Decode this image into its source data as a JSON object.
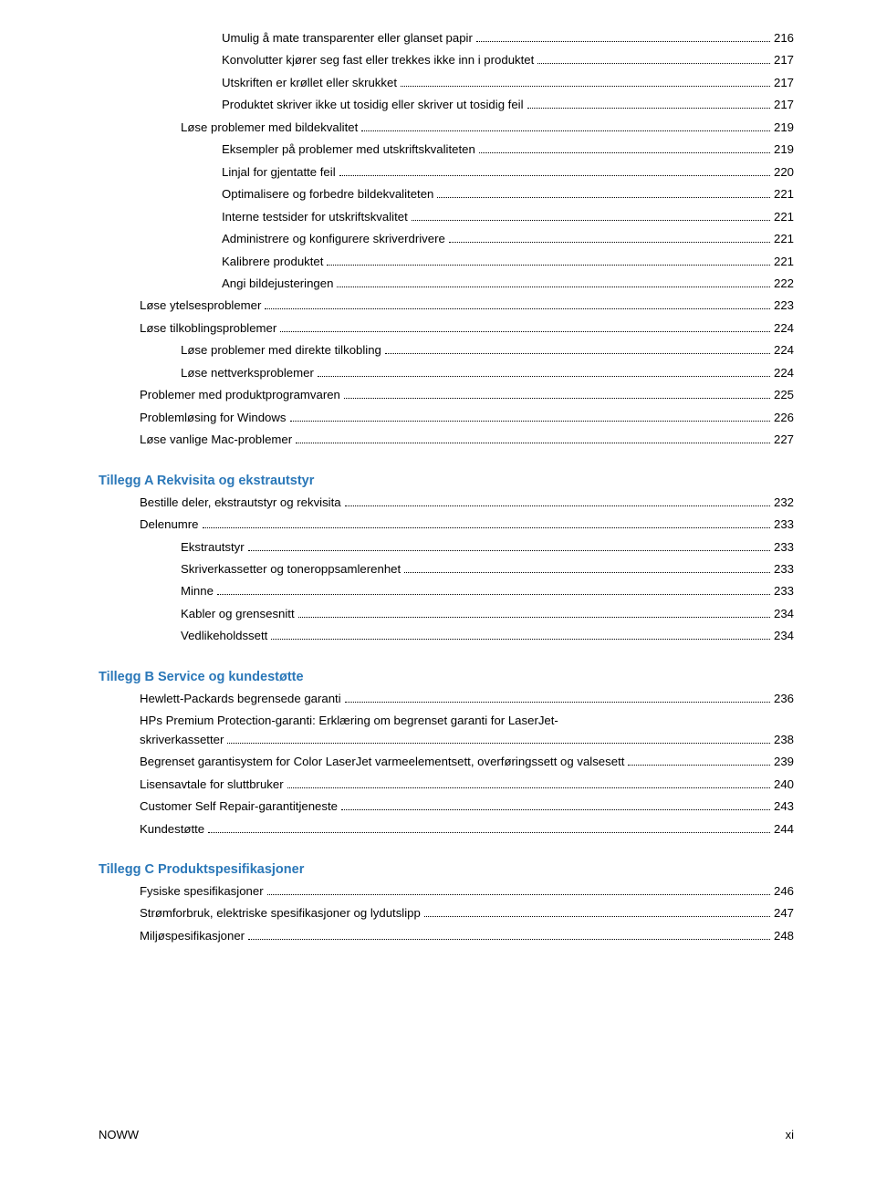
{
  "continued": [
    {
      "indent": 3,
      "label": "Umulig å mate transparenter eller glanset papir",
      "page": "216"
    },
    {
      "indent": 3,
      "label": "Konvolutter kjører seg fast eller trekkes ikke inn i produktet",
      "page": "217"
    },
    {
      "indent": 3,
      "label": "Utskriften er krøllet eller skrukket",
      "page": "217"
    },
    {
      "indent": 3,
      "label": "Produktet skriver ikke ut tosidig eller skriver ut tosidig feil",
      "page": "217"
    },
    {
      "indent": 2,
      "label": "Løse problemer med bildekvalitet",
      "page": "219"
    },
    {
      "indent": 3,
      "label": "Eksempler på problemer med utskriftskvaliteten",
      "page": "219"
    },
    {
      "indent": 3,
      "label": "Linjal for gjentatte feil",
      "page": "220"
    },
    {
      "indent": 3,
      "label": "Optimalisere og forbedre bildekvaliteten",
      "page": "221"
    },
    {
      "indent": 3,
      "label": "Interne testsider for utskriftskvalitet",
      "page": "221"
    },
    {
      "indent": 3,
      "label": "Administrere og konfigurere skriverdrivere ",
      "page": "221"
    },
    {
      "indent": 3,
      "label": "Kalibrere produktet",
      "page": "221"
    },
    {
      "indent": 3,
      "label": "Angi bildejusteringen",
      "page": "222"
    },
    {
      "indent": 1,
      "label": "Løse ytelsesproblemer",
      "page": "223"
    },
    {
      "indent": 1,
      "label": "Løse tilkoblingsproblemer ",
      "page": "224"
    },
    {
      "indent": 2,
      "label": "Løse problemer med direkte tilkobling",
      "page": "224"
    },
    {
      "indent": 2,
      "label": "Løse nettverksproblemer",
      "page": "224"
    },
    {
      "indent": 1,
      "label": "Problemer med produktprogramvaren",
      "page": "225"
    },
    {
      "indent": 1,
      "label": "Problemløsing for Windows ",
      "page": "226"
    },
    {
      "indent": 1,
      "label": "Løse vanlige Mac-problemer",
      "page": "227"
    }
  ],
  "sections": [
    {
      "prefix": "Tillegg A",
      "name": "Rekvisita og ekstrautstyr",
      "items": [
        {
          "indent": 1,
          "label": "Bestille deler, ekstrautstyr og rekvisita",
          "page": "232"
        },
        {
          "indent": 1,
          "label": "Delenumre",
          "page": "233"
        },
        {
          "indent": 2,
          "label": "Ekstrautstyr",
          "page": "233"
        },
        {
          "indent": 2,
          "label": "Skriverkassetter og toneroppsamlerenhet",
          "page": "233"
        },
        {
          "indent": 2,
          "label": "Minne",
          "page": "233"
        },
        {
          "indent": 2,
          "label": "Kabler og grensesnitt",
          "page": "234"
        },
        {
          "indent": 2,
          "label": "Vedlikeholdssett",
          "page": "234"
        }
      ]
    },
    {
      "prefix": "Tillegg B",
      "name": "Service og kundestøtte",
      "items": [
        {
          "indent": 1,
          "label": "Hewlett-Packards begrensede garanti",
          "page": "236"
        },
        {
          "indent": 1,
          "label": "HPs Premium Protection-garanti: Erklæring om begrenset garanti for LaserJet-skriverkassetter",
          "page": "238",
          "wrap": "HPs Premium Protection-garanti: Erklæring om begrenset garanti for LaserJet-|skriverkassetter"
        },
        {
          "indent": 1,
          "label": "Begrenset garantisystem for Color LaserJet varmeelementsett, overføringssett og valsesett",
          "page": "239"
        },
        {
          "indent": 1,
          "label": "Lisensavtale for sluttbruker",
          "page": "240"
        },
        {
          "indent": 1,
          "label": "Customer Self Repair-garantitjeneste",
          "page": "243"
        },
        {
          "indent": 1,
          "label": "Kundestøtte",
          "page": "244"
        }
      ]
    },
    {
      "prefix": "Tillegg C",
      "name": "Produktspesifikasjoner",
      "items": [
        {
          "indent": 1,
          "label": "Fysiske spesifikasjoner",
          "page": "246"
        },
        {
          "indent": 1,
          "label": "Strømforbruk, elektriske spesifikasjoner og lydutslipp",
          "page": "247"
        },
        {
          "indent": 1,
          "label": "Miljøspesifikasjoner",
          "page": "248"
        }
      ]
    }
  ],
  "footer": {
    "left": "NOWW",
    "right": "xi"
  }
}
